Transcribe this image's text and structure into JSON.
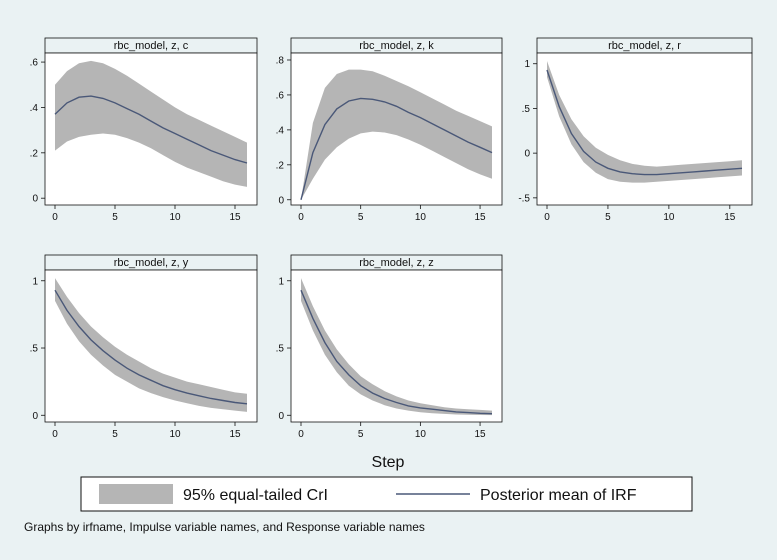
{
  "chart_data": [
    {
      "type": "line",
      "title": "rbc_model, z, c",
      "x": [
        0,
        1,
        2,
        3,
        4,
        5,
        6,
        7,
        8,
        9,
        10,
        11,
        12,
        13,
        14,
        15,
        16
      ],
      "ylim": [
        -0.03,
        0.64
      ],
      "yticks": [
        0,
        0.2,
        0.4,
        0.6
      ],
      "ytick_labels": [
        "0",
        ".2",
        ".4",
        ".6"
      ],
      "xticks": [
        0,
        5,
        10,
        15
      ],
      "xtick_labels": [
        "0",
        "5",
        "10",
        "15"
      ],
      "series": [
        {
          "name": "Posterior mean of IRF",
          "values": [
            0.37,
            0.42,
            0.445,
            0.45,
            0.44,
            0.42,
            0.395,
            0.37,
            0.34,
            0.31,
            0.285,
            0.26,
            0.235,
            0.21,
            0.19,
            0.17,
            0.155
          ]
        },
        {
          "name": "95% equal-tailed CrI",
          "lower": [
            0.21,
            0.25,
            0.27,
            0.28,
            0.285,
            0.28,
            0.265,
            0.245,
            0.22,
            0.19,
            0.16,
            0.135,
            0.115,
            0.095,
            0.075,
            0.06,
            0.05
          ],
          "upper": [
            0.5,
            0.56,
            0.595,
            0.605,
            0.595,
            0.57,
            0.54,
            0.505,
            0.47,
            0.435,
            0.4,
            0.37,
            0.345,
            0.32,
            0.295,
            0.27,
            0.245
          ]
        }
      ]
    },
    {
      "type": "line",
      "title": "rbc_model, z, k",
      "x": [
        0,
        1,
        2,
        3,
        4,
        5,
        6,
        7,
        8,
        9,
        10,
        11,
        12,
        13,
        14,
        15,
        16
      ],
      "ylim": [
        -0.03,
        0.84
      ],
      "yticks": [
        0,
        0.2,
        0.4,
        0.6,
        0.8
      ],
      "ytick_labels": [
        "0",
        ".2",
        ".4",
        ".6",
        ".8"
      ],
      "xticks": [
        0,
        5,
        10,
        15
      ],
      "xtick_labels": [
        "0",
        "5",
        "10",
        "15"
      ],
      "series": [
        {
          "name": "Posterior mean of IRF",
          "values": [
            0.0,
            0.27,
            0.43,
            0.52,
            0.565,
            0.58,
            0.575,
            0.56,
            0.535,
            0.5,
            0.47,
            0.435,
            0.4,
            0.365,
            0.33,
            0.3,
            0.27
          ]
        },
        {
          "name": "95% equal-tailed CrI",
          "lower": [
            0.0,
            0.12,
            0.23,
            0.3,
            0.35,
            0.38,
            0.39,
            0.385,
            0.37,
            0.345,
            0.315,
            0.28,
            0.245,
            0.21,
            0.175,
            0.145,
            0.12
          ],
          "upper": [
            0.0,
            0.44,
            0.64,
            0.72,
            0.745,
            0.745,
            0.735,
            0.71,
            0.68,
            0.65,
            0.615,
            0.58,
            0.545,
            0.51,
            0.48,
            0.45,
            0.42
          ]
        }
      ]
    },
    {
      "type": "line",
      "title": "rbc_model, z, r",
      "x": [
        0,
        1,
        2,
        3,
        4,
        5,
        6,
        7,
        8,
        9,
        10,
        11,
        12,
        13,
        14,
        15,
        16
      ],
      "ylim": [
        -0.58,
        1.12
      ],
      "yticks": [
        -0.5,
        0,
        0.5,
        1
      ],
      "ytick_labels": [
        "-.5",
        "0",
        ".5",
        "1"
      ],
      "xticks": [
        0,
        5,
        10,
        15
      ],
      "xtick_labels": [
        "0",
        "5",
        "10",
        "15"
      ],
      "series": [
        {
          "name": "Posterior mean of IRF",
          "values": [
            0.93,
            0.52,
            0.22,
            0.02,
            -0.1,
            -0.17,
            -0.21,
            -0.23,
            -0.24,
            -0.24,
            -0.23,
            -0.22,
            -0.21,
            -0.2,
            -0.19,
            -0.18,
            -0.17
          ]
        },
        {
          "name": "95% equal-tailed CrI",
          "lower": [
            0.85,
            0.41,
            0.1,
            -0.1,
            -0.22,
            -0.29,
            -0.32,
            -0.33,
            -0.33,
            -0.32,
            -0.31,
            -0.3,
            -0.29,
            -0.28,
            -0.27,
            -0.26,
            -0.25
          ],
          "upper": [
            1.03,
            0.65,
            0.38,
            0.19,
            0.06,
            -0.02,
            -0.08,
            -0.12,
            -0.14,
            -0.15,
            -0.14,
            -0.13,
            -0.12,
            -0.11,
            -0.1,
            -0.09,
            -0.08
          ]
        }
      ]
    },
    {
      "type": "line",
      "title": "rbc_model, z, y",
      "x": [
        0,
        1,
        2,
        3,
        4,
        5,
        6,
        7,
        8,
        9,
        10,
        11,
        12,
        13,
        14,
        15,
        16
      ],
      "ylim": [
        -0.05,
        1.08
      ],
      "yticks": [
        0,
        0.5,
        1
      ],
      "ytick_labels": [
        "0",
        ".5",
        "1"
      ],
      "xticks": [
        0,
        5,
        10,
        15
      ],
      "xtick_labels": [
        "0",
        "5",
        "10",
        "15"
      ],
      "series": [
        {
          "name": "Posterior mean of IRF",
          "values": [
            0.93,
            0.78,
            0.66,
            0.56,
            0.48,
            0.41,
            0.35,
            0.3,
            0.26,
            0.22,
            0.19,
            0.165,
            0.145,
            0.125,
            0.11,
            0.095,
            0.085
          ]
        },
        {
          "name": "95% equal-tailed CrI",
          "lower": [
            0.85,
            0.68,
            0.55,
            0.45,
            0.37,
            0.3,
            0.25,
            0.2,
            0.165,
            0.135,
            0.11,
            0.09,
            0.07,
            0.055,
            0.045,
            0.035,
            0.025
          ],
          "upper": [
            1.02,
            0.88,
            0.76,
            0.66,
            0.58,
            0.51,
            0.45,
            0.4,
            0.35,
            0.31,
            0.28,
            0.25,
            0.23,
            0.21,
            0.19,
            0.17,
            0.16
          ]
        }
      ]
    },
    {
      "type": "line",
      "title": "rbc_model, z, z",
      "x": [
        0,
        1,
        2,
        3,
        4,
        5,
        6,
        7,
        8,
        9,
        10,
        11,
        12,
        13,
        14,
        15,
        16
      ],
      "ylim": [
        -0.05,
        1.08
      ],
      "yticks": [
        0,
        0.5,
        1
      ],
      "ytick_labels": [
        "0",
        ".5",
        "1"
      ],
      "xticks": [
        0,
        5,
        10,
        15
      ],
      "xtick_labels": [
        "0",
        "5",
        "10",
        "15"
      ],
      "series": [
        {
          "name": "Posterior mean of IRF",
          "values": [
            0.93,
            0.72,
            0.54,
            0.4,
            0.3,
            0.22,
            0.165,
            0.125,
            0.095,
            0.07,
            0.055,
            0.045,
            0.035,
            0.025,
            0.02,
            0.015,
            0.012
          ]
        },
        {
          "name": "95% equal-tailed CrI",
          "lower": [
            0.85,
            0.63,
            0.45,
            0.32,
            0.22,
            0.155,
            0.11,
            0.075,
            0.05,
            0.035,
            0.022,
            0.015,
            0.01,
            0.006,
            0.004,
            0.002,
            0.001
          ],
          "upper": [
            1.02,
            0.81,
            0.63,
            0.49,
            0.38,
            0.29,
            0.23,
            0.18,
            0.14,
            0.11,
            0.09,
            0.075,
            0.06,
            0.05,
            0.045,
            0.04,
            0.035
          ]
        }
      ]
    }
  ],
  "xlabel": "Step",
  "legend": {
    "band_label": "95% equal-tailed CrI",
    "line_label": "Posterior mean of IRF"
  },
  "note": "Graphs by irfname, Impulse variable names, and Response variable names",
  "colors": {
    "background": "#eaf2f3",
    "plot_area": "#ffffff",
    "band": "#b5b5b5",
    "line": "#4a5878"
  }
}
